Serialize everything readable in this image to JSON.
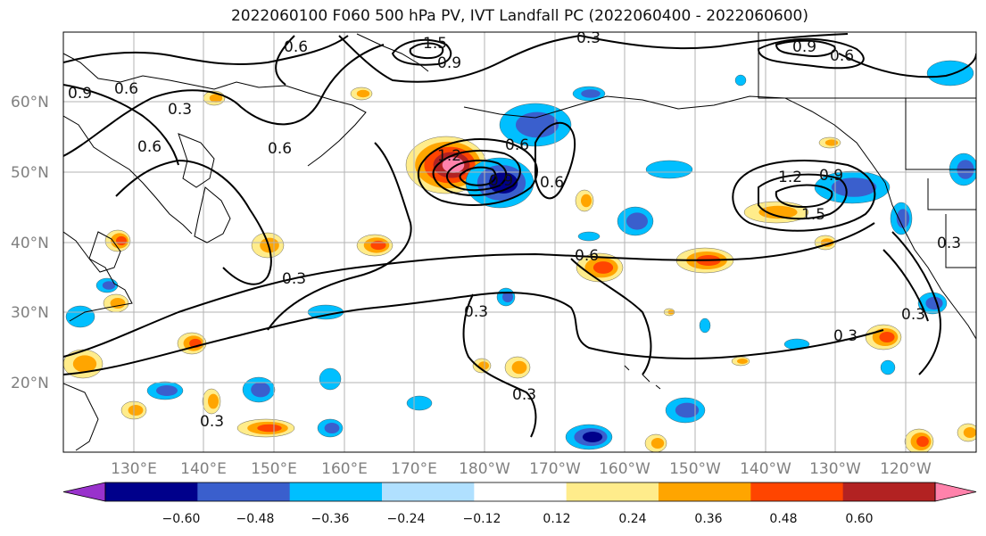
{
  "title": "2022060100 F060 500 hPa PV, IVT Landfall PC (2022060400 - 2022060600)",
  "lat_labels": [
    "60°N",
    "50°N",
    "40°N",
    "30°N",
    "20°N"
  ],
  "lon_labels": [
    "130°E",
    "140°E",
    "150°E",
    "160°E",
    "170°E",
    "180°W",
    "170°W",
    "160°W",
    "150°W",
    "140°W",
    "130°W",
    "120°W"
  ],
  "contour_labels": [
    "0.6",
    "0.9",
    "0.3",
    "0.6",
    "0.6",
    "0.6",
    "0.3",
    "1.5",
    "0.9",
    "0.3",
    "0.6",
    "1.2",
    "0.6",
    "0.9",
    "0.9",
    "1.2",
    "0.9",
    "1.5",
    "0.6",
    "0.6",
    "0.3",
    "0.3",
    "0.3",
    "0.3",
    "0.3",
    "0.3"
  ],
  "colorbar": {
    "ticks": [
      "−0.60",
      "−0.48",
      "−0.36",
      "−0.24",
      "−0.12",
      "0.12",
      "0.24",
      "0.36",
      "0.48",
      "0.60"
    ],
    "colors": [
      "#9932cc",
      "#00008b",
      "#3a5fcd",
      "#00bfff",
      "#b0e0ff",
      "#ffffff",
      "#ffec8b",
      "#ffa500",
      "#ff4500",
      "#b22222",
      "#ff82ab"
    ]
  },
  "map_colors": {
    "neg1": "#00bfff",
    "neg2": "#3a5fcd",
    "neg3": "#00008b",
    "pos1": "#ffec8b",
    "pos2": "#ffa500",
    "pos3": "#ff4500",
    "pos4": "#b22222",
    "pos5": "#ff82ab"
  }
}
